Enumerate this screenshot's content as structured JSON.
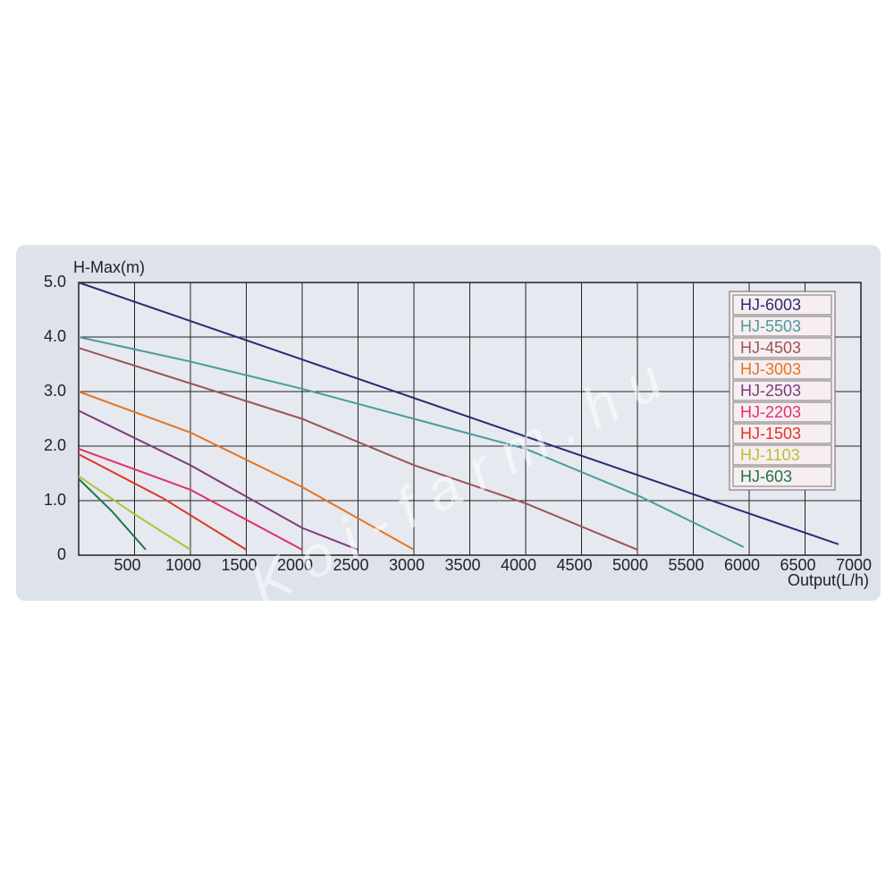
{
  "chart_data": {
    "type": "line",
    "ylabel": "H-Max(m)",
    "xlabel": "Output(L/h)",
    "watermark": "Koi-farm.hu",
    "xlim": [
      0,
      7000
    ],
    "ylim": [
      0,
      5
    ],
    "xticks": [
      500,
      1000,
      1500,
      2000,
      2500,
      3000,
      3500,
      4000,
      4500,
      5000,
      5500,
      6000,
      6500,
      7000
    ],
    "yticks": [
      {
        "value": 5,
        "label": "5.0"
      },
      {
        "value": 4,
        "label": "4.0"
      },
      {
        "value": 3,
        "label": "3.0"
      },
      {
        "value": 2,
        "label": "2.0"
      },
      {
        "value": 1,
        "label": "1.0"
      },
      0
    ],
    "grid": true,
    "series": [
      {
        "name": "HJ-6003",
        "color": "#2b2b72",
        "x": [
          0,
          6800
        ],
        "values": [
          5.0,
          0.2
        ]
      },
      {
        "name": "HJ-5503",
        "color": "#4b9b9b",
        "x": [
          0,
          1000,
          2000,
          3000,
          4000,
          5000,
          5950
        ],
        "values": [
          4.0,
          3.55,
          3.05,
          2.5,
          1.95,
          1.1,
          0.15
        ]
      },
      {
        "name": "HJ-4503",
        "color": "#9a5555",
        "x": [
          0,
          2000,
          3000,
          4000,
          5000
        ],
        "values": [
          3.8,
          2.5,
          1.65,
          0.95,
          0.1
        ]
      },
      {
        "name": "HJ-3003",
        "color": "#e57420",
        "x": [
          0,
          1000,
          2000,
          3000
        ],
        "values": [
          3.0,
          2.25,
          1.25,
          0.1
        ]
      },
      {
        "name": "HJ-2503",
        "color": "#7b3c7b",
        "x": [
          0,
          1000,
          2000,
          2500
        ],
        "values": [
          2.65,
          1.65,
          0.5,
          0.1
        ]
      },
      {
        "name": "HJ-2203",
        "color": "#e0306e",
        "x": [
          0,
          1000,
          2000
        ],
        "values": [
          1.95,
          1.2,
          0.1
        ]
      },
      {
        "name": "HJ-1503",
        "color": "#e03522",
        "x": [
          0,
          750,
          1500
        ],
        "values": [
          1.85,
          1.05,
          0.1
        ]
      },
      {
        "name": "HJ-1103",
        "color": "#b3c236",
        "x": [
          0,
          500,
          1000
        ],
        "values": [
          1.45,
          0.75,
          0.1
        ]
      },
      {
        "name": "HJ-603",
        "color": "#237244",
        "x": [
          0,
          300,
          600
        ],
        "values": [
          1.4,
          0.8,
          0.1
        ]
      }
    ]
  }
}
